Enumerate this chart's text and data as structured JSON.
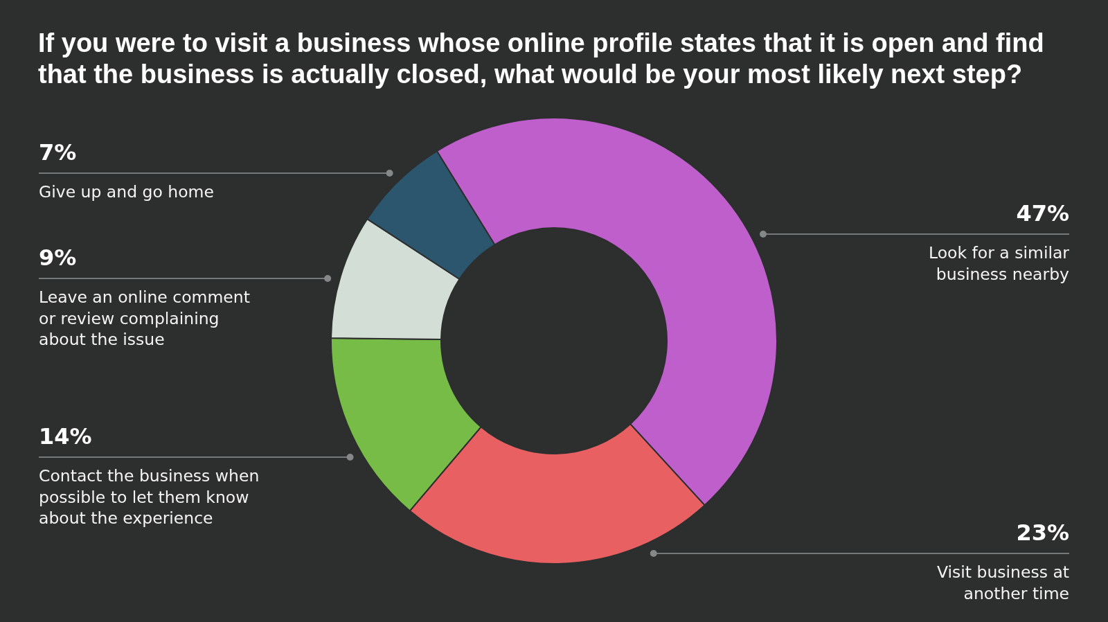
{
  "chart_data": {
    "type": "donut",
    "title": "If you were to visit a business whose online profile states that it is open and find that the business is actually closed, what would be your most likely next step?",
    "categories": [
      "Look for a similar business nearby",
      "Visit business at another time",
      "Contact the business when possible to let them know about the experience",
      "Leave an online comment or review complaining about the issue",
      "Give up and go home"
    ],
    "values": [
      47,
      23,
      14,
      9,
      7
    ],
    "colors": [
      "#bf5fcc",
      "#e86062",
      "#76bc47",
      "#d3dfd6",
      "#2c566e"
    ],
    "value_labels": [
      "47%",
      "23%",
      "14%",
      "9%",
      "7%"
    ]
  }
}
